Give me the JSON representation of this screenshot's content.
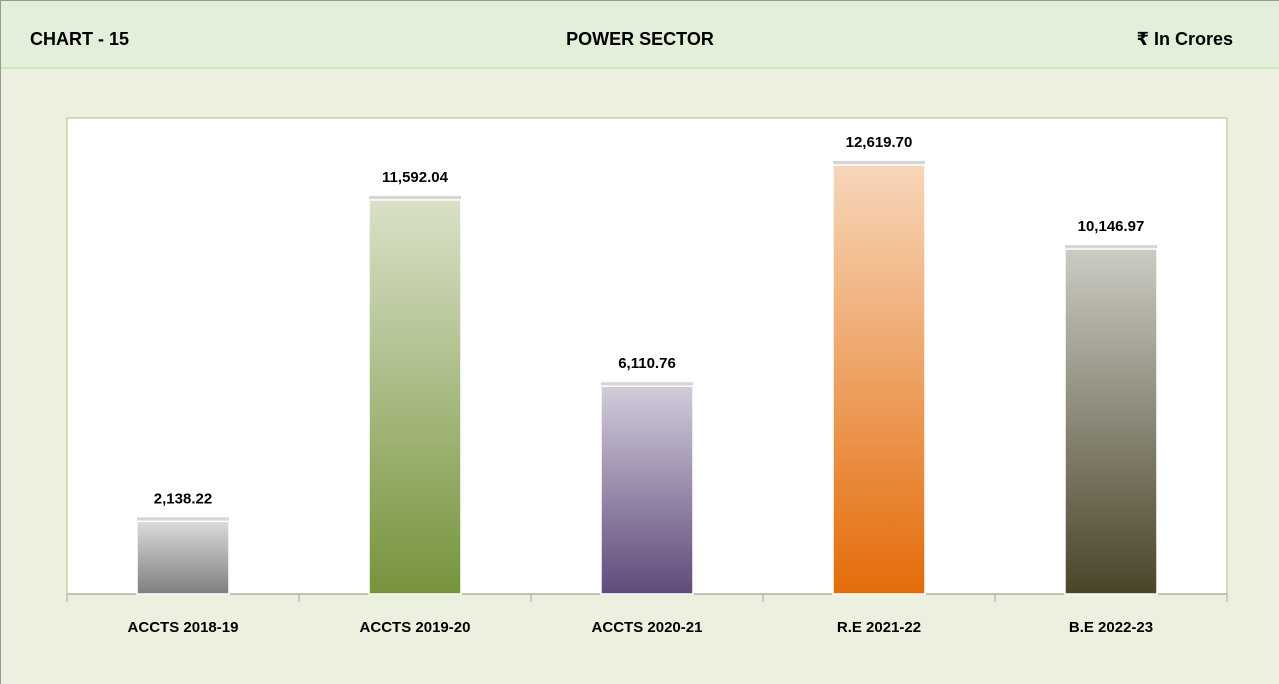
{
  "chart_data": {
    "type": "bar",
    "chart_label": "CHART - 15",
    "title": "POWER SECTOR",
    "unit_label": "₹ In Crores",
    "categories": [
      "ACCTS 2018-19",
      "ACCTS 2019-20",
      "ACCTS 2020-21",
      "R.E 2021-22",
      "B.E 2022-23"
    ],
    "values": [
      2138.22,
      11592.04,
      6110.76,
      12619.7,
      10146.97
    ],
    "value_labels": [
      "2,138.22",
      "11,592.04",
      "6,110.76",
      "12,619.70",
      "10,146.97"
    ],
    "colors": [
      "#7f7f7f",
      "#76933c",
      "#604a7b",
      "#e46c0a",
      "#494429"
    ],
    "ylim": [
      0,
      14000
    ],
    "grid": false
  }
}
